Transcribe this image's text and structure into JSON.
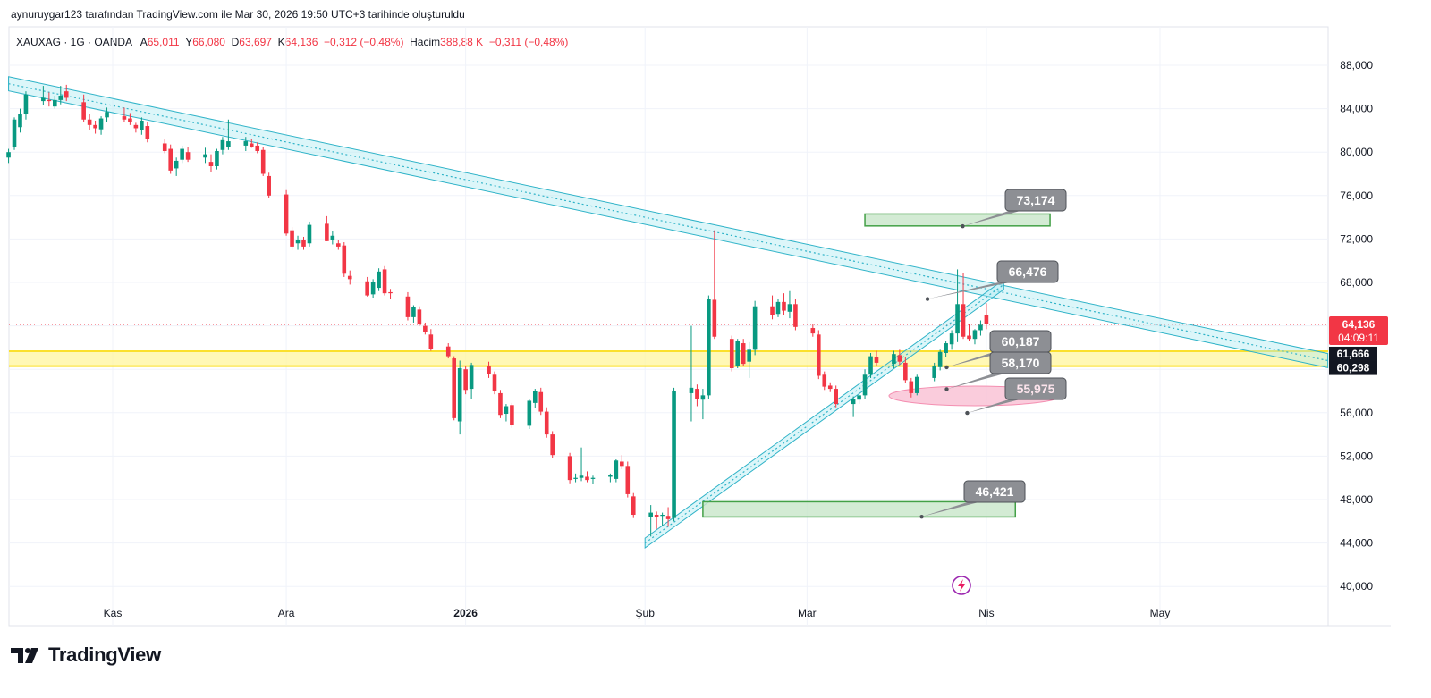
{
  "caption": "aynuruygar123 tarafından TradingView.com ile Mar 30, 2026 19:50 UTC+3 tarihinde oluşturuldu",
  "legend": {
    "symbol": "XAUXAG · 1G · OANDA",
    "open_label": "A",
    "open": "65,011",
    "high_label": "Y",
    "high": "66,080",
    "low_label": "D",
    "low": "63,697",
    "close_label": "K",
    "close": "64,136",
    "change": "−0,312 (−0,48%)",
    "volume_label": "Hacim",
    "volume": "388,88 K",
    "volume_change": "−0,311 (−0,48%)"
  },
  "brand": {
    "name": "TradingView"
  },
  "colors": {
    "up": "#089981",
    "down": "#f23645",
    "channel": "#2fb3c8",
    "zone": "#fff59d",
    "box": "#43a047",
    "ellipse": "#f48fb1",
    "callout": "#8d8f94"
  },
  "chart_data": {
    "type": "candlestick",
    "ylim": [
      38000,
      90000
    ],
    "y_ticks": [
      "40,000",
      "44,000",
      "48,000",
      "52,000",
      "56,000",
      "60,000",
      "64,000",
      "68,000",
      "72,000",
      "76,000",
      "80,000",
      "84,000",
      "88,000"
    ],
    "y_tick_values": [
      40000,
      44000,
      48000,
      52000,
      56000,
      60000,
      64000,
      68000,
      72000,
      76000,
      80000,
      84000,
      88000
    ],
    "x_ticks": [
      {
        "label": "Kas",
        "date": "2025-11-01",
        "bold": false
      },
      {
        "label": "Ara",
        "date": "2025-12-01",
        "bold": false
      },
      {
        "label": "2026",
        "date": "2026-01-01",
        "bold": true
      },
      {
        "label": "Şub",
        "date": "2026-02-01",
        "bold": false
      },
      {
        "label": "Mar",
        "date": "2026-03-01",
        "bold": false
      },
      {
        "label": "Nis",
        "date": "2026-04-01",
        "bold": false
      },
      {
        "label": "May",
        "date": "2026-05-01",
        "bold": false
      }
    ],
    "x_range": [
      "2025-10-14",
      "2026-05-30"
    ],
    "candles": [
      [
        "2025-10-14",
        79500,
        80300,
        79000,
        80000
      ],
      [
        "2025-10-15",
        80500,
        83200,
        80200,
        83000
      ],
      [
        "2025-10-16",
        82300,
        84000,
        81800,
        83500
      ],
      [
        "2025-10-17",
        83500,
        85600,
        83000,
        85300
      ],
      [
        "2025-10-20",
        84700,
        86100,
        84300,
        85000
      ],
      [
        "2025-10-21",
        84800,
        85500,
        84200,
        84700
      ],
      [
        "2025-10-22",
        84200,
        85200,
        84000,
        84800
      ],
      [
        "2025-10-23",
        84800,
        86100,
        84400,
        85200
      ],
      [
        "2025-10-24",
        85600,
        86200,
        84700,
        85000
      ],
      [
        "2025-10-27",
        84600,
        85300,
        82800,
        83000
      ],
      [
        "2025-10-28",
        83000,
        83500,
        82000,
        82500
      ],
      [
        "2025-10-29",
        82500,
        82900,
        81700,
        82200
      ],
      [
        "2025-10-30",
        82100,
        83300,
        81600,
        83100
      ],
      [
        "2025-10-31",
        83200,
        84100,
        82800,
        83700
      ],
      [
        "2025-11-03",
        83300,
        84100,
        82800,
        83000
      ],
      [
        "2025-11-04",
        83100,
        83600,
        82500,
        82800
      ],
      [
        "2025-11-05",
        82500,
        82700,
        81800,
        82200
      ],
      [
        "2025-11-06",
        82000,
        83200,
        81600,
        82900
      ],
      [
        "2025-11-07",
        82400,
        82800,
        80900,
        81200
      ],
      [
        "2025-11-10",
        80800,
        81200,
        79900,
        80100
      ],
      [
        "2025-11-11",
        80300,
        80700,
        78000,
        78300
      ],
      [
        "2025-11-12",
        78500,
        79500,
        77800,
        79200
      ],
      [
        "2025-11-13",
        79300,
        80600,
        79000,
        80300
      ],
      [
        "2025-11-14",
        80000,
        80500,
        79100,
        79300
      ],
      [
        "2025-11-17",
        79500,
        80400,
        79000,
        79800
      ],
      [
        "2025-11-18",
        79100,
        79800,
        78200,
        78700
      ],
      [
        "2025-11-19",
        78700,
        80300,
        78400,
        80100
      ],
      [
        "2025-11-20",
        80200,
        81400,
        79800,
        81100
      ],
      [
        "2025-11-21",
        80500,
        83000,
        80200,
        81000
      ],
      [
        "2025-11-24",
        80600,
        81400,
        80100,
        81000
      ],
      [
        "2025-11-25",
        80800,
        81200,
        80400,
        80500
      ],
      [
        "2025-11-26",
        80600,
        80900,
        79900,
        80100
      ],
      [
        "2025-11-27",
        80200,
        80500,
        77800,
        78000
      ],
      [
        "2025-11-28",
        77800,
        78100,
        75800,
        76000
      ],
      [
        "2025-12-01",
        76100,
        76500,
        72300,
        72500
      ],
      [
        "2025-12-02",
        72800,
        73100,
        71000,
        71300
      ],
      [
        "2025-12-03",
        71600,
        72300,
        71000,
        71900
      ],
      [
        "2025-12-04",
        71900,
        72200,
        71000,
        71300
      ],
      [
        "2025-12-05",
        71600,
        73600,
        71300,
        73300
      ],
      [
        "2025-12-08",
        73400,
        74100,
        71800,
        71800
      ],
      [
        "2025-12-09",
        71900,
        72700,
        71500,
        72300
      ],
      [
        "2025-12-10",
        71600,
        71900,
        71000,
        71300
      ],
      [
        "2025-12-11",
        71400,
        71700,
        68500,
        68800
      ],
      [
        "2025-12-12",
        68600,
        69100,
        67800,
        68300
      ],
      [
        "2025-12-15",
        68100,
        68500,
        66700,
        66800
      ],
      [
        "2025-12-16",
        66900,
        68300,
        66600,
        68000
      ],
      [
        "2025-12-17",
        67500,
        69300,
        67200,
        69000
      ],
      [
        "2025-12-18",
        69200,
        69500,
        66800,
        67000
      ],
      [
        "2025-12-19",
        67100,
        67400,
        66500,
        67000
      ],
      [
        "2025-12-22",
        66700,
        67100,
        64500,
        64800
      ],
      [
        "2025-12-23",
        64800,
        65900,
        64300,
        65700
      ],
      [
        "2025-12-24",
        65500,
        65800,
        64000,
        64200
      ],
      [
        "2025-12-25",
        64000,
        64300,
        63200,
        63400
      ],
      [
        "2025-12-26",
        63200,
        63700,
        61700,
        61900
      ],
      [
        "2025-12-29",
        62100,
        62400,
        61000,
        61200
      ],
      [
        "2025-12-30",
        61000,
        61200,
        55300,
        55500
      ],
      [
        "2025-12-31",
        55200,
        60800,
        54000,
        60100
      ],
      [
        "2026-01-01",
        60000,
        60300,
        57700,
        58100
      ],
      [
        "2026-01-02",
        58200,
        60600,
        57300,
        60400
      ],
      [
        "2026-01-05",
        60300,
        60700,
        59200,
        59600
      ],
      [
        "2026-01-06",
        59500,
        59800,
        57700,
        58000
      ],
      [
        "2026-01-07",
        57800,
        58100,
        55500,
        55800
      ],
      [
        "2026-01-08",
        55900,
        56800,
        55200,
        56600
      ],
      [
        "2026-01-09",
        56700,
        56900,
        54600,
        54900
      ],
      [
        "2026-01-12",
        54800,
        57300,
        54500,
        57100
      ],
      [
        "2026-01-13",
        56900,
        58200,
        56400,
        58000
      ],
      [
        "2026-01-14",
        57900,
        58300,
        55800,
        56100
      ],
      [
        "2026-01-15",
        56100,
        56500,
        53700,
        54000
      ],
      [
        "2026-01-16",
        54000,
        54300,
        51800,
        52100
      ],
      [
        "2026-01-19",
        52000,
        52300,
        49500,
        49800
      ],
      [
        "2026-01-20",
        49900,
        50400,
        49600,
        50000
      ],
      [
        "2026-01-21",
        50000,
        52800,
        49700,
        50200
      ],
      [
        "2026-01-22",
        50100,
        50600,
        49600,
        49800
      ],
      [
        "2026-01-23",
        49900,
        50200,
        49400,
        50000
      ],
      [
        "2026-01-26",
        50100,
        50400,
        49600,
        50300
      ],
      [
        "2026-01-27",
        49900,
        51700,
        49600,
        51600
      ],
      [
        "2026-01-28",
        51500,
        52100,
        50800,
        51100
      ],
      [
        "2026-01-29",
        51100,
        51500,
        48200,
        48500
      ],
      [
        "2026-01-30",
        48300,
        48600,
        46300,
        46600
      ],
      [
        "2026-02-02",
        46400,
        47500,
        44600,
        46800
      ],
      [
        "2026-02-03",
        46600,
        46900,
        45300,
        46400
      ],
      [
        "2026-02-04",
        46500,
        46800,
        45600,
        46600
      ],
      [
        "2026-02-05",
        46500,
        47300,
        45500,
        46200
      ],
      [
        "2026-02-06",
        46300,
        58300,
        46000,
        58000
      ],
      [
        "2026-02-09",
        57800,
        64000,
        55200,
        58300
      ],
      [
        "2026-02-10",
        58200,
        58600,
        56600,
        57300
      ],
      [
        "2026-02-11",
        57200,
        58200,
        55400,
        57600
      ],
      [
        "2026-02-12",
        57600,
        66800,
        57300,
        66500
      ],
      [
        "2026-02-13",
        66400,
        72800,
        62800,
        63000
      ],
      [
        "2026-02-16",
        62800,
        63100,
        59800,
        60100
      ],
      [
        "2026-02-17",
        60300,
        62800,
        60100,
        62600
      ],
      [
        "2026-02-18",
        62400,
        62800,
        60300,
        60500
      ],
      [
        "2026-02-19",
        60700,
        62500,
        59200,
        61800
      ],
      [
        "2026-02-20",
        61800,
        66300,
        61300,
        65800
      ],
      [
        "2026-02-23",
        65800,
        66800,
        64600,
        65000
      ],
      [
        "2026-02-24",
        65100,
        66500,
        64800,
        66200
      ],
      [
        "2026-02-25",
        66200,
        67000,
        65000,
        65400
      ],
      [
        "2026-02-26",
        65300,
        67200,
        64700,
        66000
      ],
      [
        "2026-02-27",
        66000,
        66500,
        63600,
        63900
      ],
      [
        "2026-03-02",
        63800,
        64200,
        63000,
        63300
      ],
      [
        "2026-03-03",
        63200,
        63600,
        59100,
        59400
      ],
      [
        "2026-03-04",
        59500,
        59800,
        58100,
        58400
      ],
      [
        "2026-03-05",
        58500,
        58800,
        57900,
        58200
      ],
      [
        "2026-03-06",
        58200,
        58500,
        56500,
        56800
      ],
      [
        "2026-03-09",
        56800,
        57500,
        55600,
        57300
      ],
      [
        "2026-03-10",
        57200,
        57900,
        56800,
        57600
      ],
      [
        "2026-03-11",
        57600,
        60000,
        57300,
        59500
      ],
      [
        "2026-03-12",
        59500,
        61500,
        59200,
        61200
      ],
      [
        "2026-03-13",
        61100,
        61700,
        60300,
        60600
      ],
      [
        "2026-03-16",
        60500,
        61700,
        60100,
        61400
      ],
      [
        "2026-03-17",
        61300,
        61800,
        60400,
        60700
      ],
      [
        "2026-03-18",
        60600,
        61100,
        58700,
        59000
      ],
      [
        "2026-03-19",
        58900,
        59200,
        57400,
        57800
      ],
      [
        "2026-03-20",
        57800,
        59500,
        57600,
        59300
      ],
      [
        "2026-03-23",
        59200,
        60600,
        58900,
        60300
      ],
      [
        "2026-03-24",
        60200,
        61800,
        59900,
        61600
      ],
      [
        "2026-03-25",
        61500,
        62600,
        61100,
        62400
      ],
      [
        "2026-03-26",
        62300,
        63600,
        61800,
        63300
      ],
      [
        "2026-03-27",
        63300,
        69200,
        62500,
        66000
      ],
      [
        "2026-03-28",
        66000,
        68900,
        62800,
        63000
      ],
      [
        "2026-03-29",
        63100,
        64200,
        62600,
        62800
      ],
      [
        "2026-03-30",
        62800,
        63700,
        62300,
        63600
      ],
      [
        "2026-03-31",
        63600,
        64500,
        63100,
        64100
      ],
      [
        "2026-04-01",
        65011,
        66080,
        63697,
        64136
      ]
    ],
    "price_labels": [
      {
        "value": "64,136",
        "sub": "04:09:11",
        "kind": "last"
      },
      {
        "value": "61,666",
        "kind": "level"
      },
      {
        "value": "60,298",
        "kind": "level"
      }
    ],
    "callouts": [
      "73,174",
      "66,476",
      "60,187",
      "58,170",
      "55,975",
      "46,421"
    ],
    "callout_values": [
      73174,
      66476,
      60187,
      58170,
      55975,
      46421
    ],
    "zone": [
      60298,
      61666
    ],
    "last_value": 64136
  }
}
